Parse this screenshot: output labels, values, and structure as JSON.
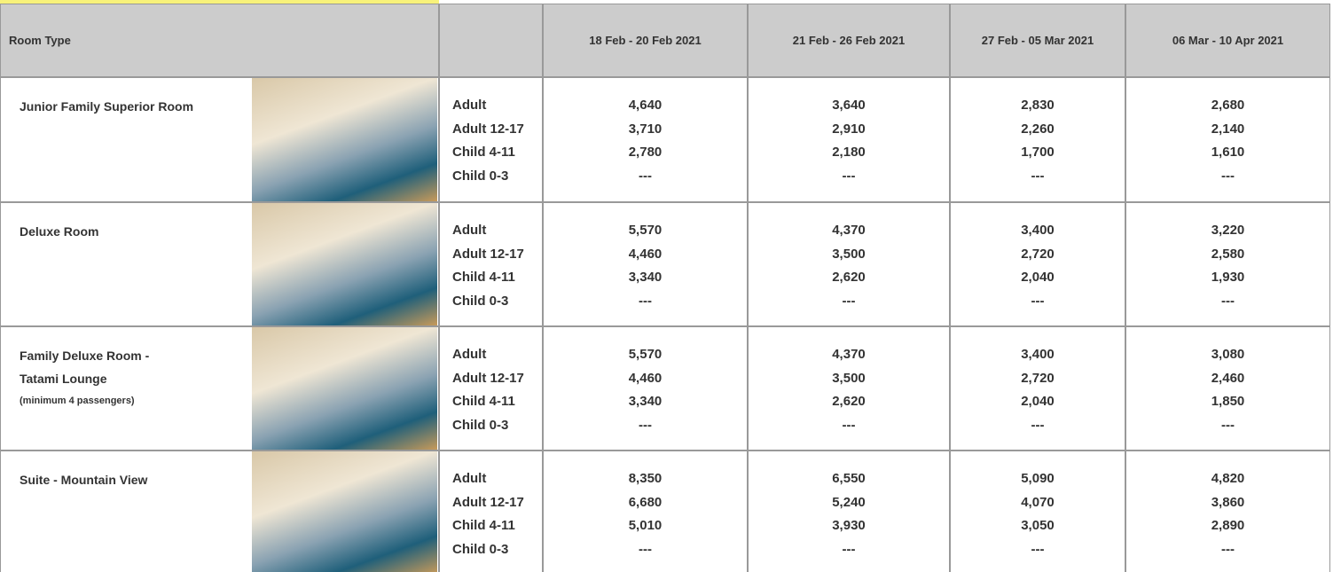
{
  "header": {
    "room_type": "Room Type",
    "dates": [
      "18 Feb - 20 Feb 2021",
      "21 Feb - 26 Feb 2021",
      "27 Feb - 05 Mar 2021",
      "06 Mar - 10 Apr 2021"
    ]
  },
  "rows": [
    {
      "name": "Junior Family Superior Room",
      "labels": [
        "Adult",
        "Adult 12-17",
        "Child 4-11",
        "Child 0-3"
      ],
      "prices": [
        [
          "4,640",
          "3,640",
          "2,830",
          "2,680"
        ],
        [
          "3,710",
          "2,910",
          "2,260",
          "2,140"
        ],
        [
          "2,780",
          "2,180",
          "1,700",
          "1,610"
        ],
        [
          "---",
          "---",
          "---",
          "---"
        ]
      ]
    },
    {
      "name": "Deluxe Room",
      "labels": [
        "Adult",
        "Adult 12-17",
        "Child 4-11",
        "Child 0-3"
      ],
      "prices": [
        [
          "5,570",
          "4,370",
          "3,400",
          "3,220"
        ],
        [
          "4,460",
          "3,500",
          "2,720",
          "2,580"
        ],
        [
          "3,340",
          "2,620",
          "2,040",
          "1,930"
        ],
        [
          "---",
          "---",
          "---",
          "---"
        ]
      ]
    },
    {
      "name": "Family Deluxe Room - Tatami Lounge",
      "note": "(minimum 4 passengers)",
      "labels": [
        "Adult",
        "Adult 12-17",
        "Child 4-11",
        "Child 0-3"
      ],
      "prices": [
        [
          "5,570",
          "4,370",
          "3,400",
          "3,080"
        ],
        [
          "4,460",
          "3,500",
          "2,720",
          "2,460"
        ],
        [
          "3,340",
          "2,620",
          "2,040",
          "1,850"
        ],
        [
          "---",
          "---",
          "---",
          "---"
        ]
      ]
    },
    {
      "name": "Suite - Mountain View",
      "labels": [
        "Adult",
        "Adult 12-17",
        "Child 4-11",
        "Child 0-3"
      ],
      "prices": [
        [
          "8,350",
          "6,550",
          "5,090",
          "4,820"
        ],
        [
          "6,680",
          "5,240",
          "4,070",
          "3,860"
        ],
        [
          "5,010",
          "3,930",
          "3,050",
          "2,890"
        ],
        [
          "---",
          "---",
          "---",
          "---"
        ]
      ]
    }
  ]
}
